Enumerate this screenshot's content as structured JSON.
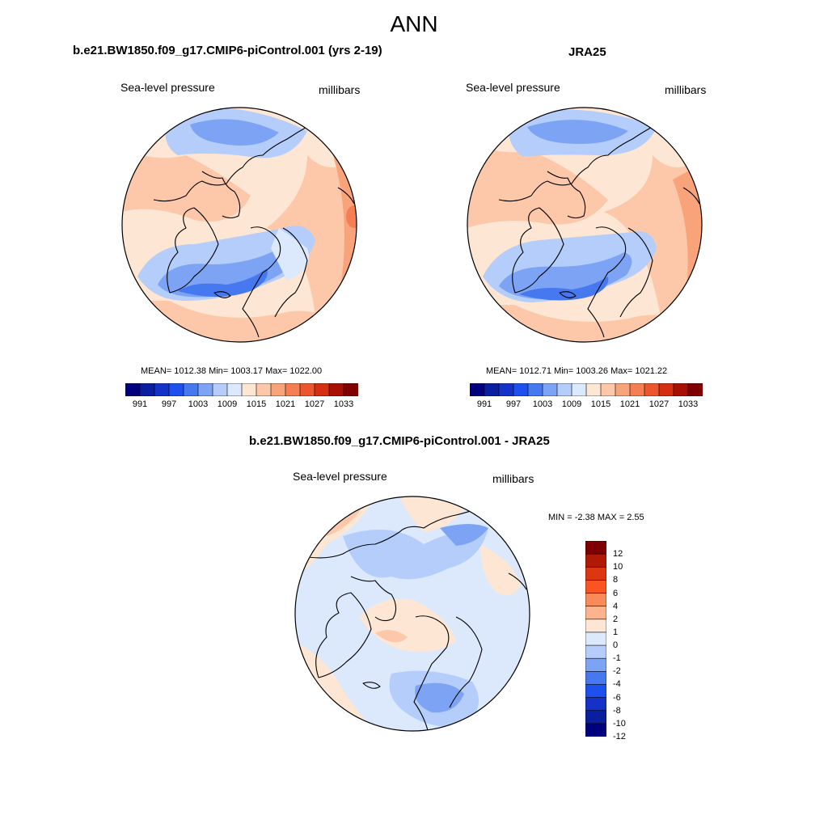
{
  "figure": {
    "title": "ANN"
  },
  "panel_model": {
    "title": "b.e21.BW1850.f09_g17.CMIP6-piControl.001 (yrs 2-19)",
    "variable": "Sea-level pressure",
    "units": "millibars",
    "stats": "MEAN= 1012.38  Min= 1003.17  Max= 1022.00"
  },
  "panel_obs": {
    "title": "JRA25",
    "variable": "Sea-level pressure",
    "units": "millibars",
    "stats": "MEAN= 1012.71  Min= 1003.26  Max= 1021.22"
  },
  "panel_diff": {
    "title": "b.e21.BW1850.f09_g17.CMIP6-piControl.001 - JRA25",
    "variable": "Sea-level pressure",
    "units": "millibars",
    "stats": "MIN =  -2.38 MAX =   2.55"
  },
  "colorbar_abs": {
    "colors": [
      "#00007f",
      "#0a1ea0",
      "#1432c8",
      "#1e50f0",
      "#4678f0",
      "#7da3f5",
      "#b4cdfa",
      "#dce9fd",
      "#fde6d3",
      "#fcc8a9",
      "#f9a37a",
      "#f57f52",
      "#ed552f",
      "#d42f12",
      "#a80f05",
      "#7f0000"
    ],
    "ticks": [
      "991",
      "997",
      "1003",
      "1009",
      "1015",
      "1021",
      "1027",
      "1033"
    ]
  },
  "colorbar_diff": {
    "colors": [
      "#7f0000",
      "#b01a05",
      "#dc3710",
      "#fa5520",
      "#f98a5a",
      "#fcb48e",
      "#fde6d3",
      "#dce9fd",
      "#b4cdfa",
      "#7da3f5",
      "#4678f0",
      "#1e50f0",
      "#1432c8",
      "#0a1ea0",
      "#00007f"
    ],
    "ticks": [
      "12",
      "10",
      "8",
      "6",
      "4",
      "2",
      "1",
      "0",
      "-1",
      "-2",
      "-4",
      "-6",
      "-8",
      "-10",
      "-12"
    ]
  },
  "palette": {
    "lightred": "#fde6d3",
    "red1": "#fcc8a9",
    "red2": "#f9a37a",
    "red3": "#f57f52",
    "lightblue": "#dce9fd",
    "blue1": "#b4cdfa",
    "blue2": "#7da3f5",
    "blue3": "#4678f0"
  }
}
